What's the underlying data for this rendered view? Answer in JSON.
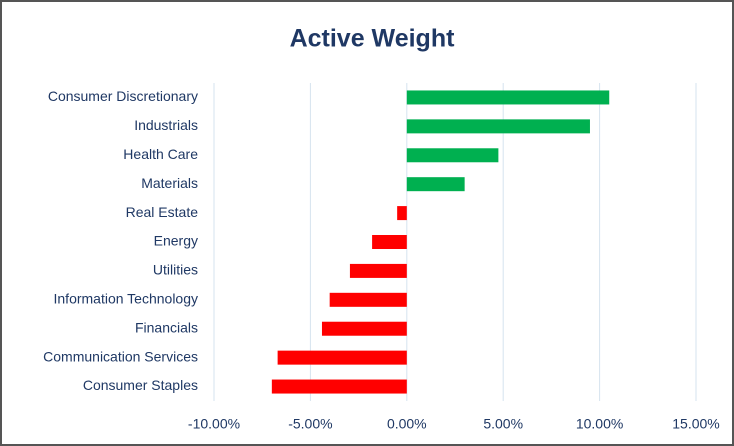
{
  "chart_data": {
    "type": "hbar",
    "title": "Active Weight",
    "categories": [
      "Consumer Discretionary",
      "Industrials",
      "Health Care",
      "Materials",
      "Real Estate",
      "Energy",
      "Utilities",
      "Information Technology",
      "Financials",
      "Communication Services",
      "Consumer Staples"
    ],
    "values": [
      10.5,
      9.5,
      4.75,
      3.0,
      -0.5,
      -1.8,
      -2.95,
      -4.0,
      -4.4,
      -6.7,
      -7.0
    ],
    "positive_color": "#00b050",
    "negative_color": "#ff0000",
    "xlim": [
      -10,
      15
    ],
    "xticks": [
      {
        "value": -10,
        "label": "-10.00%"
      },
      {
        "value": -5,
        "label": "-5.00%"
      },
      {
        "value": 0,
        "label": "0.00%"
      },
      {
        "value": 5,
        "label": "5.00%"
      },
      {
        "value": 10,
        "label": "10.00%"
      },
      {
        "value": 15,
        "label": "15.00%"
      }
    ],
    "grid": true
  }
}
